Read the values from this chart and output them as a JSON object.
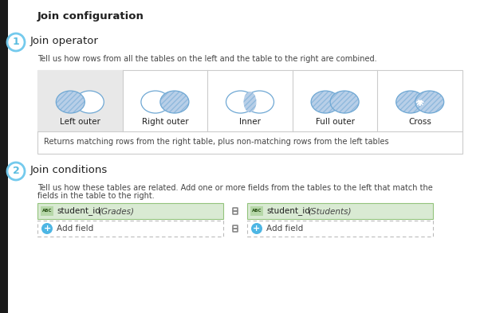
{
  "title": "Join configuration",
  "section1_label": "1",
  "section1_title": "Join operator",
  "section1_desc": "Tell us how rows from all the tables on the left and the table to the right are combined.",
  "join_types": [
    "Left outer",
    "Right outer",
    "Inner",
    "Full outer",
    "Cross"
  ],
  "selected_join": 0,
  "join_desc": "Returns matching rows from the right table, plus non-matching rows from the left tables",
  "section2_label": "2",
  "section2_title": "Join conditions",
  "section2_desc_line1": "Tell us how these tables are related. Add one or more fields from the tables to the left that match the",
  "section2_desc_line2": "fields in the table to the right.",
  "field1_label": "student_id",
  "field1_table": "(Grades)",
  "field2_label": "student_id",
  "field2_table": "(Students)",
  "add_field_text": "Add field",
  "bg_color": "#ffffff",
  "left_bar_color": "#1a1a1a",
  "circle_fill_blue": "#b8cfe8",
  "circle_stroke_blue": "#6fa8d4",
  "selected_bg": "#e8e8e8",
  "border_color": "#cccccc",
  "border_color_dark": "#aaaaaa",
  "text_dark": "#202020",
  "text_mid": "#444444",
  "text_light": "#666666",
  "green_bg": "#d9ead3",
  "green_border": "#93c47d",
  "number_circle_stroke": "#74caed",
  "number_circle_text": "#5bbde0",
  "plus_circle_color": "#4db6e4",
  "abc_bg": "#b6d7a8",
  "abc_text": "#274e13",
  "link_icon_color": "#888888",
  "dashed_border": "#bbbbbb"
}
